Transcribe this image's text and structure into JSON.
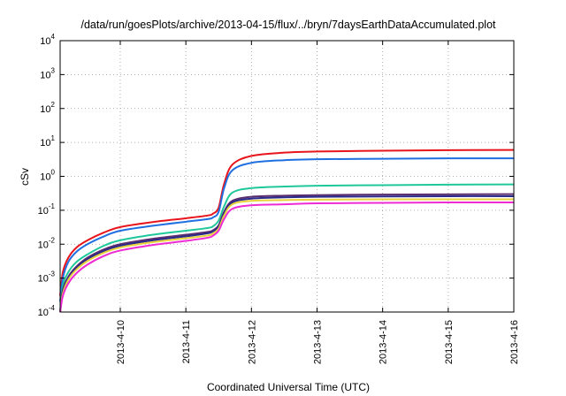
{
  "chart_data": {
    "type": "line",
    "title": "/data/run/goesPlots/archive/2013-04-15/flux/../bryn/7daysEarthDataAccumulated.plot",
    "xlabel": "Coordinated Universal Time (UTC)",
    "ylabel": "cSv",
    "xlim": [
      "2013-04-09T02:00",
      "2013-04-16T00:00"
    ],
    "ylim": [
      0.0001,
      10000
    ],
    "yscale": "log",
    "grid": true,
    "x_ticks": [
      "2013-4-10",
      "2013-4-11",
      "2013-4-12",
      "2013-4-13",
      "2013-4-14",
      "2013-4-15",
      "2013-4-16"
    ],
    "y_ticks": [
      {
        "base": "10",
        "exp": "-4"
      },
      {
        "base": "10",
        "exp": "-3"
      },
      {
        "base": "10",
        "exp": "-2"
      },
      {
        "base": "10",
        "exp": "-1"
      },
      {
        "base": "10",
        "exp": "0"
      },
      {
        "base": "10",
        "exp": "1"
      },
      {
        "base": "10",
        "exp": "2"
      },
      {
        "base": "10",
        "exp": "3"
      },
      {
        "base": "10",
        "exp": "4"
      }
    ],
    "x": [
      "2013-04-09T02:00",
      "2013-04-09T03:00",
      "2013-04-09T05:00",
      "2013-04-09T08:00",
      "2013-04-09T12:00",
      "2013-04-09T18:00",
      "2013-04-10T00:00",
      "2013-04-10T12:00",
      "2013-04-11T00:00",
      "2013-04-11T08:00",
      "2013-04-11T10:00",
      "2013-04-11T12:00",
      "2013-04-11T14:00",
      "2013-04-11T17:00",
      "2013-04-12T00:00",
      "2013-04-12T12:00",
      "2013-04-13T00:00",
      "2013-04-14T00:00",
      "2013-04-15T00:00",
      "2013-04-16T00:00"
    ],
    "series": [
      {
        "color": "#e8141c",
        "values": [
          0.0003,
          0.0015,
          0.004,
          0.008,
          0.013,
          0.022,
          0.032,
          0.045,
          0.058,
          0.07,
          0.08,
          0.12,
          0.6,
          2.2,
          4.0,
          5.0,
          5.4,
          5.7,
          5.9,
          6.0
        ]
      },
      {
        "color": "#1f6fe0",
        "values": [
          0.0002,
          0.001,
          0.003,
          0.006,
          0.01,
          0.017,
          0.025,
          0.035,
          0.046,
          0.055,
          0.062,
          0.09,
          0.45,
          1.5,
          2.5,
          3.0,
          3.2,
          3.3,
          3.4,
          3.4
        ]
      },
      {
        "color": "#1fc89a",
        "values": [
          0.0001,
          0.0006,
          0.0015,
          0.003,
          0.005,
          0.009,
          0.013,
          0.019,
          0.025,
          0.03,
          0.034,
          0.05,
          0.13,
          0.33,
          0.45,
          0.5,
          0.53,
          0.55,
          0.57,
          0.58
        ]
      },
      {
        "color": "#5a2d6e",
        "values": [
          0.0001,
          0.00045,
          0.0011,
          0.0022,
          0.004,
          0.007,
          0.01,
          0.0145,
          0.019,
          0.023,
          0.026,
          0.036,
          0.09,
          0.19,
          0.25,
          0.27,
          0.28,
          0.29,
          0.295,
          0.3
        ]
      },
      {
        "color": "#2a2a8a",
        "values": [
          0.0001,
          0.0004,
          0.001,
          0.002,
          0.0036,
          0.0063,
          0.009,
          0.013,
          0.017,
          0.021,
          0.024,
          0.033,
          0.08,
          0.17,
          0.22,
          0.24,
          0.25,
          0.255,
          0.26,
          0.26
        ]
      },
      {
        "color": "#e8d23c",
        "values": [
          0.0001,
          0.00035,
          0.0009,
          0.0018,
          0.0032,
          0.0056,
          0.008,
          0.0115,
          0.015,
          0.018,
          0.021,
          0.029,
          0.07,
          0.15,
          0.19,
          0.2,
          0.205,
          0.21,
          0.21,
          0.21
        ]
      },
      {
        "color": "#ee2ad4",
        "values": [
          0.0001,
          0.0003,
          0.0007,
          0.0014,
          0.0025,
          0.0045,
          0.0065,
          0.0095,
          0.0125,
          0.0155,
          0.018,
          0.025,
          0.055,
          0.11,
          0.14,
          0.15,
          0.16,
          0.165,
          0.17,
          0.17
        ]
      }
    ]
  }
}
